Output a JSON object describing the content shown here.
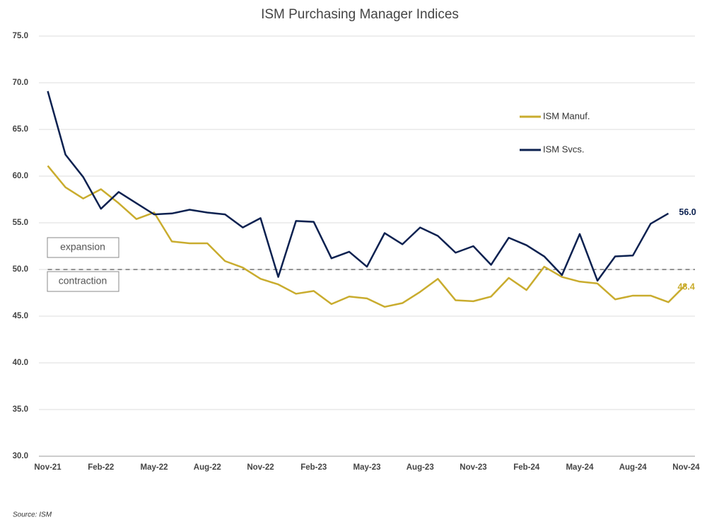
{
  "chart_data": {
    "type": "line",
    "title": "ISM Purchasing Manager Indices",
    "categories": [
      "Nov-21",
      null,
      null,
      "Feb-22",
      null,
      null,
      "May-22",
      null,
      null,
      "Aug-22",
      null,
      null,
      "Nov-22",
      null,
      null,
      "Feb-23",
      null,
      null,
      "May-23",
      null,
      null,
      "Aug-23",
      null,
      null,
      "Nov-23",
      null,
      null,
      "Feb-24",
      null,
      null,
      "May-24",
      null,
      null,
      "Aug-24",
      null,
      null,
      "Nov-24"
    ],
    "series": [
      {
        "name": "ISM Manuf.",
        "color": "#c9ac2e",
        "values": [
          61.1,
          58.8,
          57.6,
          58.6,
          57.1,
          55.4,
          56.1,
          53.0,
          52.8,
          52.8,
          50.9,
          50.2,
          49.0,
          48.4,
          47.4,
          47.7,
          46.3,
          47.1,
          46.9,
          46.0,
          46.4,
          47.6,
          49.0,
          46.7,
          46.6,
          47.1,
          49.1,
          47.8,
          50.3,
          49.2,
          48.7,
          48.5,
          46.8,
          47.2,
          47.2,
          46.5,
          48.4
        ],
        "value_labels": [
          null,
          null,
          null,
          null,
          null,
          null,
          null,
          null,
          null,
          null,
          null,
          null,
          null,
          null,
          null,
          null,
          null,
          null,
          null,
          null,
          null,
          null,
          null,
          null,
          null,
          null,
          null,
          null,
          null,
          null,
          null,
          null,
          null,
          null,
          null,
          null,
          "48.4"
        ]
      },
      {
        "name": "ISM Svcs.",
        "color": "#0c2150",
        "values": [
          69.1,
          62.3,
          59.9,
          56.5,
          58.3,
          57.1,
          55.9,
          56.0,
          56.4,
          56.1,
          55.9,
          54.5,
          55.5,
          49.2,
          55.2,
          55.1,
          51.2,
          51.9,
          50.3,
          53.9,
          52.7,
          54.5,
          53.6,
          51.8,
          52.5,
          50.5,
          53.4,
          52.6,
          51.4,
          49.4,
          53.8,
          48.8,
          51.4,
          51.5,
          54.9,
          56.0,
          null
        ],
        "value_labels": [
          null,
          null,
          null,
          null,
          null,
          null,
          null,
          null,
          null,
          null,
          null,
          null,
          null,
          null,
          null,
          null,
          null,
          null,
          null,
          null,
          null,
          null,
          null,
          null,
          null,
          null,
          null,
          null,
          null,
          null,
          null,
          null,
          null,
          null,
          null,
          "56.0",
          null
        ]
      }
    ],
    "ylim": [
      30,
      75
    ],
    "yticks": [
      {
        "value": 30,
        "label": "30.0"
      },
      {
        "value": 35,
        "label": "35.0"
      },
      {
        "value": 40,
        "label": "40.0"
      },
      {
        "value": 45,
        "label": "45.0"
      },
      {
        "value": 50,
        "label": "50.0"
      },
      {
        "value": 55,
        "label": "55.0"
      },
      {
        "value": 60,
        "label": "60.0"
      },
      {
        "value": 65,
        "label": "65.0"
      },
      {
        "value": 70,
        "label": "70.0"
      },
      {
        "value": 75,
        "label": "75.0"
      }
    ],
    "grid": true,
    "legend": "upper right",
    "reference_line": 50,
    "annotations": [
      "expansion",
      "contraction"
    ],
    "source": "Source: ISM"
  }
}
